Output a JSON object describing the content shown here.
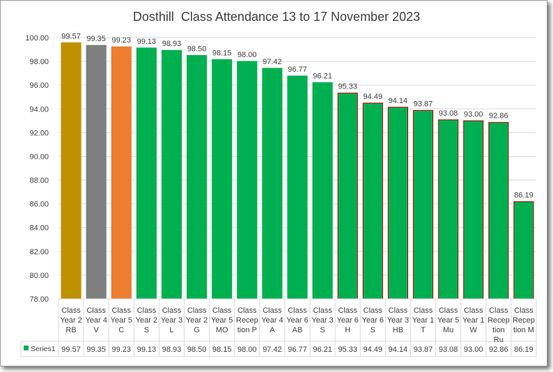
{
  "chart_data": {
    "type": "bar",
    "title": "Dosthill  Class Attendance 13 to 17 November 2023",
    "xlabel": "",
    "ylabel": "",
    "ylim": [
      78.0,
      100.0
    ],
    "ytick_step": 2,
    "yticks": [
      "78.00",
      "80.00",
      "82.00",
      "84.00",
      "86.00",
      "88.00",
      "90.00",
      "92.00",
      "94.00",
      "96.00",
      "98.00",
      "100.00"
    ],
    "grid": true,
    "legend": "data-table",
    "categories": [
      [
        "Class",
        "Year 2",
        "RB"
      ],
      [
        "Class",
        "Year 4",
        "V"
      ],
      [
        "Class",
        "Year 5",
        "C"
      ],
      [
        "Class",
        "Year 2",
        "S"
      ],
      [
        "Class",
        "Year 3",
        "L"
      ],
      [
        "Class",
        "Year 2",
        "G"
      ],
      [
        "Class",
        "Year 5",
        "MO"
      ],
      [
        "Class",
        "Recep",
        "tion P"
      ],
      [
        "Class",
        "Year 4",
        "A"
      ],
      [
        "Class",
        "Year 6",
        "AB"
      ],
      [
        "Class",
        "Year 3",
        "S"
      ],
      [
        "Class",
        "Year 6",
        "H"
      ],
      [
        "Class",
        "Year 6",
        "S"
      ],
      [
        "Class",
        "Year 3",
        "HB"
      ],
      [
        "Class",
        "Year 1",
        "T"
      ],
      [
        "Class",
        "Year 5",
        "Mu"
      ],
      [
        "Class",
        "Year 1",
        "W"
      ],
      [
        "Class",
        "Recep",
        "tion",
        "Ru"
      ],
      [
        "Class",
        "Recep",
        "tion M"
      ]
    ],
    "series": [
      {
        "name": "Series1",
        "values": [
          99.57,
          99.35,
          99.23,
          99.13,
          98.93,
          98.5,
          98.15,
          98.0,
          97.42,
          96.77,
          96.21,
          95.33,
          94.49,
          94.14,
          93.87,
          93.08,
          93.0,
          92.86,
          86.19
        ],
        "labels": [
          "99.57",
          "99.35",
          "99.23",
          "99.13",
          "98.93",
          "98.50",
          "98.15",
          "98.00",
          "97.42",
          "96.77",
          "96.21",
          "95.33",
          "94.49",
          "94.14",
          "93.87",
          "93.08",
          "93.00",
          "92.86",
          "86.19"
        ]
      }
    ],
    "bar_colors": [
      "#bf9000",
      "#7f7f7f",
      "#ed7d31",
      "#00b050",
      "#00b050",
      "#00b050",
      "#00b050",
      "#00b050",
      "#00b050",
      "#00b050",
      "#00b050",
      "#00b050",
      "#00b050",
      "#00b050",
      "#00b050",
      "#00b050",
      "#00b050",
      "#00b050",
      "#00b050"
    ],
    "bar_border_colors": [
      "#bf9000",
      "#7f7f7f",
      "#ed7d31",
      "#00b050",
      "#00b050",
      "#00b050",
      "#00b050",
      "#00b050",
      "#00b050",
      "#00b050",
      "#00b050",
      "#c00000",
      "#c00000",
      "#c00000",
      "#c00000",
      "#c00000",
      "#c00000",
      "#c00000",
      "#c00000"
    ],
    "legend_color": "#00b050",
    "grid_color": "#d9d9d9",
    "text_color": "#404040"
  }
}
